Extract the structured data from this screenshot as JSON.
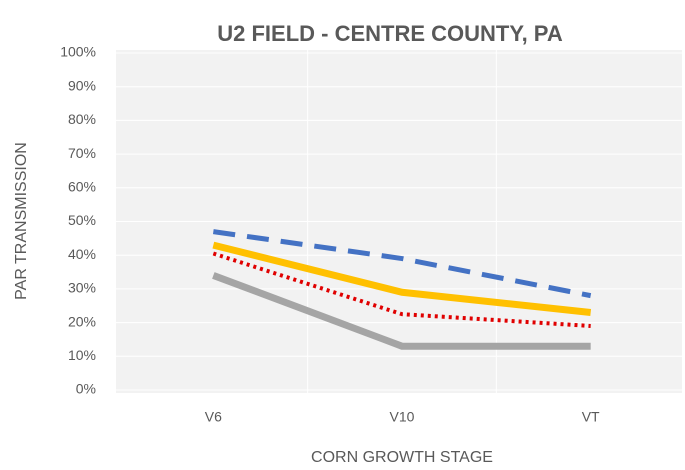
{
  "chart_data": {
    "type": "line",
    "title": "U2 FIELD - CENTRE COUNTY, PA",
    "x_label": "CORN GROWTH STAGE",
    "y_label": "PAR TRANSMISSION",
    "categories": [
      "V6",
      "V10",
      "VT"
    ],
    "series": [
      {
        "color": "#4472c4",
        "style": "dashed",
        "values": [
          47,
          39,
          28
        ]
      },
      {
        "color": "#ffc000",
        "style": "solid",
        "values": [
          43,
          29,
          23
        ]
      },
      {
        "color": "#e00000",
        "style": "dotted",
        "values": [
          40.5,
          22.5,
          19
        ]
      },
      {
        "color": "#a5a5a5",
        "style": "solid",
        "values": [
          34,
          13,
          13
        ]
      }
    ],
    "ylim": [
      0,
      100
    ],
    "yticks": [
      {
        "value": 0,
        "label": "0%"
      },
      {
        "value": 10,
        "label": "10%"
      },
      {
        "value": 20,
        "label": "20%"
      },
      {
        "value": 30,
        "label": "30%"
      },
      {
        "value": 40,
        "label": "40%"
      },
      {
        "value": 50,
        "label": "50%"
      },
      {
        "value": 60,
        "label": "60%"
      },
      {
        "value": 70,
        "label": "70%"
      },
      {
        "value": 80,
        "label": "80%"
      },
      {
        "value": 90,
        "label": "90%"
      },
      {
        "value": 100,
        "label": "100%"
      }
    ],
    "grid": true
  }
}
